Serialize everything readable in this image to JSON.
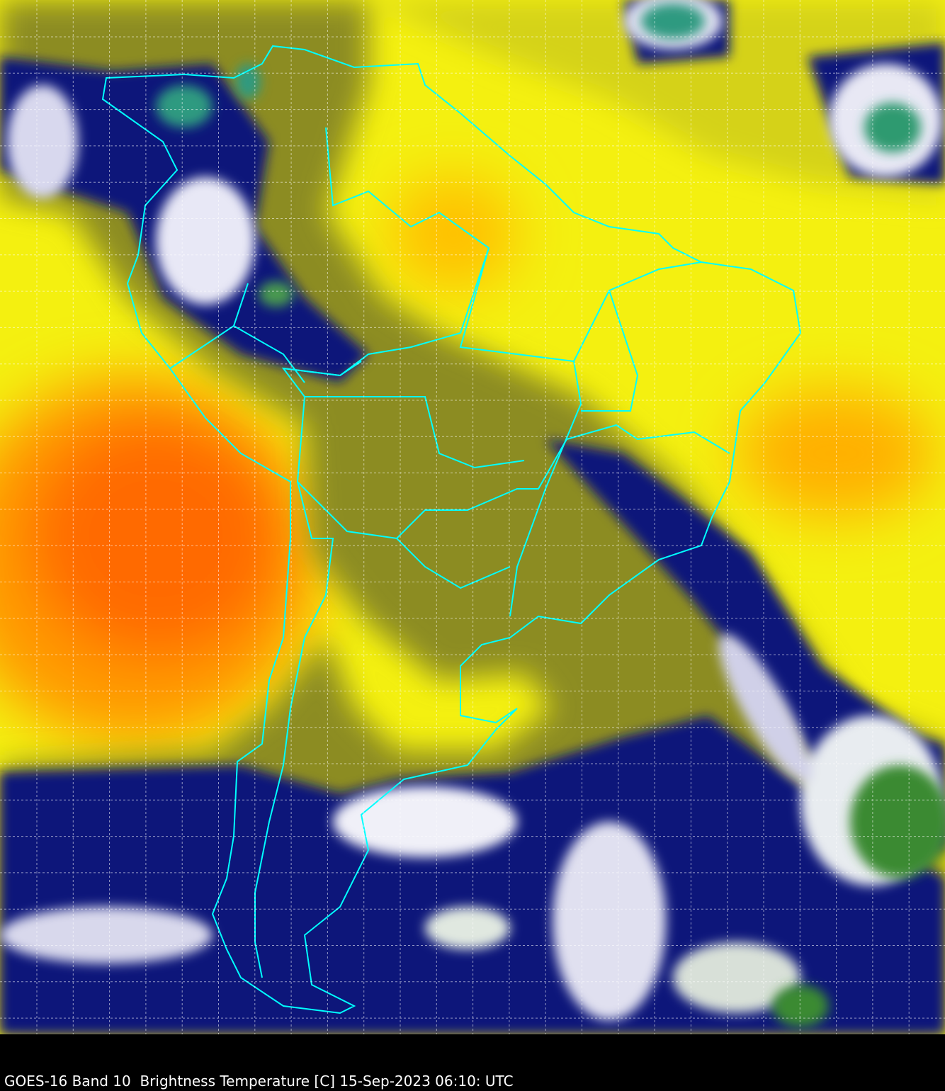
{
  "caption": "GOES-16 Band 10  Brightness Temperature [C] 15-Sep-2023 06:10: UTC",
  "colors": {
    "warm": "#ff6a00",
    "mid": "#ffff00",
    "cool": "#8a8a20",
    "cold": "#10127a",
    "very_cold": "#ffffff",
    "coldest": "#3a8a30",
    "borders": "#00ffff",
    "grid": "#ffffff",
    "background": "#000000"
  }
}
